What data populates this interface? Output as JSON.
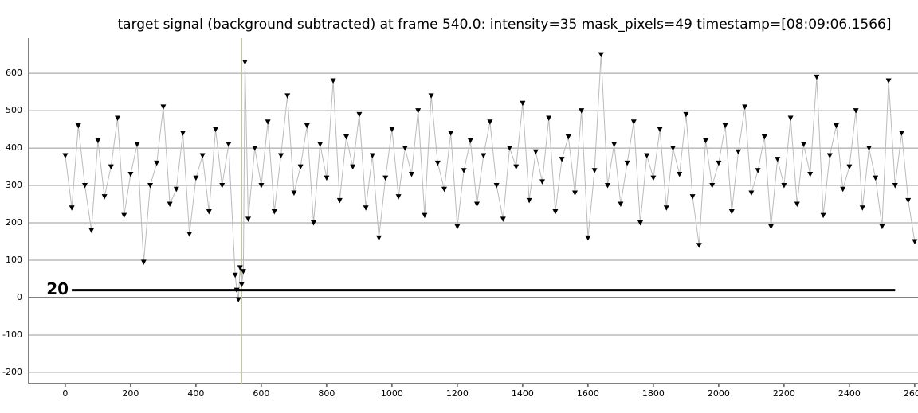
{
  "chart_data": {
    "type": "line",
    "title": "target signal (background subtracted) at frame 540.0: intensity=35 mask_pixels=49 timestamp=[08:09:06.1566]",
    "xlim": [
      -112,
      2610
    ],
    "ylim": [
      -230,
      694
    ],
    "xticks": [
      0,
      200,
      400,
      600,
      800,
      1000,
      1200,
      1400,
      1600,
      1800,
      2000,
      2200,
      2400,
      2600
    ],
    "yticks": [
      -200,
      -100,
      0,
      100,
      200,
      300,
      400,
      500,
      600
    ],
    "grid": true,
    "cursor_x": 540,
    "cursor_color": "#c8c88a",
    "threshold": 20,
    "threshold_x": [
      20,
      2540
    ],
    "series": [
      {
        "color": "#000000",
        "line_color": "#bbbbbb",
        "x": [
          0,
          20,
          40,
          60,
          80,
          100,
          120,
          140,
          160,
          180,
          200,
          220,
          240,
          260,
          280,
          300,
          320,
          340,
          360,
          380,
          400,
          420,
          440,
          460,
          480,
          500,
          520,
          525,
          530,
          535,
          540,
          545,
          550,
          560,
          580,
          600,
          620,
          640,
          660,
          680,
          700,
          720,
          740,
          760,
          780,
          800,
          820,
          840,
          860,
          880,
          900,
          920,
          940,
          960,
          980,
          1000,
          1020,
          1040,
          1060,
          1080,
          1100,
          1120,
          1140,
          1160,
          1180,
          1200,
          1220,
          1240,
          1260,
          1280,
          1300,
          1320,
          1340,
          1360,
          1380,
          1400,
          1420,
          1440,
          1460,
          1480,
          1500,
          1520,
          1540,
          1560,
          1580,
          1600,
          1620,
          1640,
          1660,
          1680,
          1700,
          1720,
          1740,
          1760,
          1780,
          1800,
          1820,
          1840,
          1860,
          1880,
          1900,
          1920,
          1940,
          1960,
          1980,
          2000,
          2020,
          2040,
          2060,
          2080,
          2100,
          2120,
          2140,
          2160,
          2180,
          2200,
          2220,
          2240,
          2260,
          2280,
          2300,
          2320,
          2340,
          2360,
          2380,
          2400,
          2420,
          2440,
          2460,
          2480,
          2500,
          2520,
          2540,
          2560,
          2580,
          2600
        ],
        "values": [
          380,
          240,
          460,
          300,
          180,
          420,
          270,
          350,
          480,
          220,
          330,
          410,
          95,
          300,
          360,
          510,
          250,
          290,
          440,
          170,
          320,
          380,
          230,
          450,
          300,
          410,
          60,
          20,
          -5,
          80,
          35,
          70,
          630,
          210,
          400,
          300,
          470,
          230,
          380,
          540,
          280,
          350,
          460,
          200,
          410,
          320,
          580,
          260,
          430,
          350,
          490,
          240,
          380,
          160,
          320,
          450,
          270,
          400,
          330,
          500,
          220,
          540,
          360,
          290,
          440,
          190,
          340,
          420,
          250,
          380,
          470,
          300,
          210,
          400,
          350,
          520,
          260,
          390,
          310,
          480,
          230,
          370,
          430,
          280,
          500,
          160,
          340,
          650,
          300,
          410,
          250,
          360,
          470,
          200,
          380,
          320,
          450,
          240,
          400,
          330,
          490,
          270,
          140,
          420,
          300,
          360,
          460,
          230,
          390,
          510,
          280,
          340,
          430,
          190,
          370,
          300,
          480,
          250,
          410,
          330,
          590,
          220,
          380,
          460,
          290,
          350,
          500,
          240,
          400,
          320,
          190,
          580,
          300,
          440,
          260,
          150
        ]
      }
    ]
  }
}
